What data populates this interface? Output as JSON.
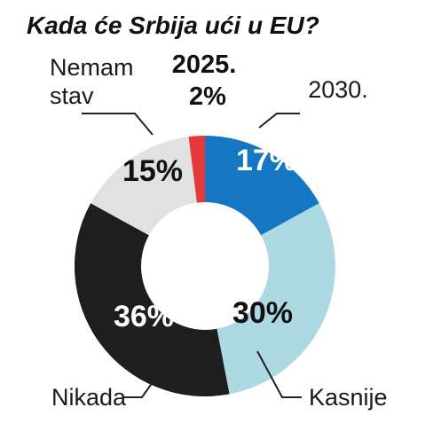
{
  "chart_data": {
    "type": "pie",
    "title": "Kada će Srbija ući u EU?",
    "donut": true,
    "slices": [
      {
        "label": "2030.",
        "value": 17,
        "value_label": "17%",
        "color": "#1577c2",
        "value_color": "#ffffff"
      },
      {
        "label": "Kasnije",
        "value": 30,
        "value_label": "30%",
        "color": "#add9e3",
        "value_color": "#111111"
      },
      {
        "label": "Nikada",
        "value": 36,
        "value_label": "36%",
        "color": "#1e1e1e",
        "value_color": "#ffffff"
      },
      {
        "label": "Nemam stav",
        "label_lines": [
          "Nemam",
          "stav"
        ],
        "value": 15,
        "value_label": "15%",
        "color": "#e1e1e1",
        "value_color": "#111111"
      },
      {
        "label": "2025.",
        "value": 2,
        "value_label": "2%",
        "color": "#e5383b",
        "value_color": "#111111"
      }
    ]
  }
}
